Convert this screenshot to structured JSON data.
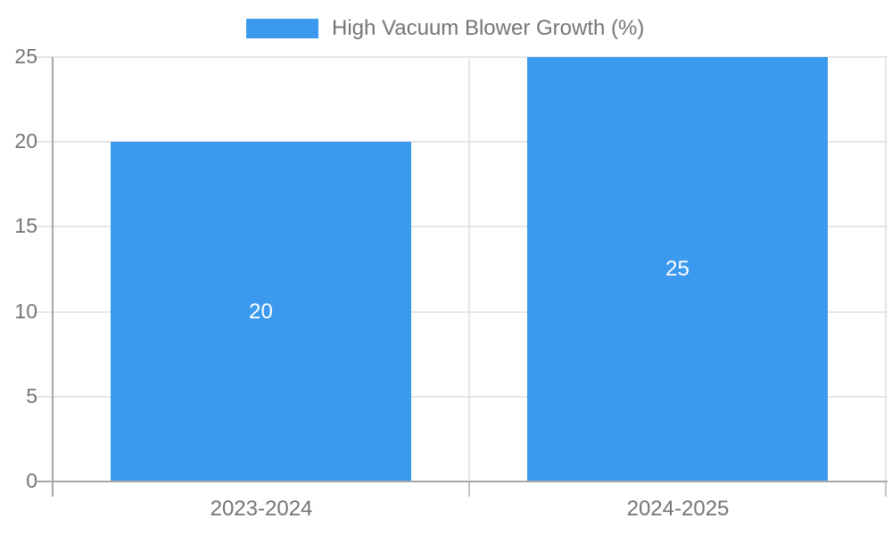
{
  "chart_data": {
    "type": "bar",
    "title": "High Vacuum Blower Growth (%)",
    "categories": [
      "2023-2024",
      "2024-2025"
    ],
    "values": [
      20,
      25
    ],
    "value_labels": [
      "20",
      "25"
    ],
    "xlabel": "",
    "ylabel": "",
    "ylim": [
      0,
      25
    ],
    "yticks": [
      0,
      5,
      10,
      15,
      20,
      25
    ],
    "grid": true,
    "legend_position": "top-center",
    "colors": {
      "bar": "#3b99ee",
      "value_label": "#ffffff",
      "axis_text": "#757575",
      "gridline": "#e6e6e6",
      "axis_line": "#a8a8a8",
      "minor_tick": "#c4c4c4",
      "background": "#ffffff"
    }
  }
}
